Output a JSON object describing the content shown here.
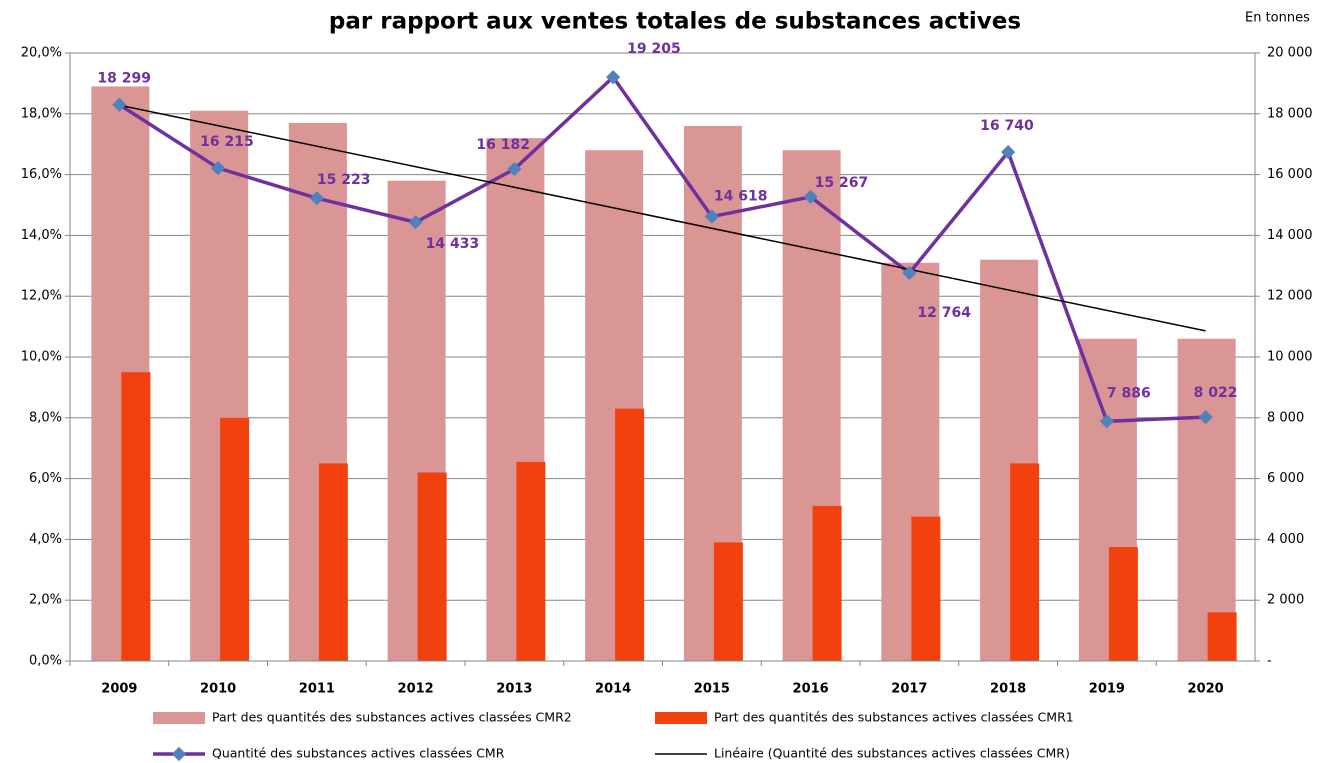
{
  "chart_data": {
    "type": "bar",
    "title": "par rapport aux ventes totales de substances actives",
    "unit_note": "En tonnes",
    "categories": [
      "2009",
      "2010",
      "2011",
      "2012",
      "2013",
      "2014",
      "2015",
      "2016",
      "2017",
      "2018",
      "2019",
      "2020"
    ],
    "series": [
      {
        "name": "Part des quantités des substances actives classées CMR2",
        "color": "#d99694",
        "values": [
          18.9,
          18.1,
          17.7,
          15.8,
          17.2,
          16.8,
          17.6,
          16.8,
          13.1,
          13.2,
          10.6,
          10.6
        ]
      },
      {
        "name": "Part des quantités des substances actives classées CMR1",
        "color": "#f0410f",
        "values": [
          9.5,
          8.0,
          6.5,
          6.2,
          6.55,
          8.3,
          3.9,
          5.1,
          4.75,
          6.5,
          3.75,
          1.6
        ]
      },
      {
        "name": "Quantité des substances actives classées CMR",
        "color": "#7030a0",
        "marker_color": "#4f81bd",
        "axis": "y2",
        "values": [
          18299,
          16215,
          15223,
          14433,
          16182,
          19205,
          14618,
          15267,
          12764,
          16740,
          7886,
          8022
        ],
        "value_labels": [
          "18 299",
          "16 215",
          "15 223",
          "14 433",
          "16 182",
          "19 205",
          "14 618",
          "15 267",
          "12 764",
          "16 740",
          "7 886",
          "8 022"
        ]
      }
    ],
    "trendline": {
      "name": "Linéaire (Quantité des substances actives classées CMR)",
      "color": "#000000"
    },
    "ylim": [
      0,
      20
    ],
    "yticks": [
      {
        "value": 0,
        "label": "0,0%"
      },
      {
        "value": 2,
        "label": "2,0%"
      },
      {
        "value": 4,
        "label": "4,0%"
      },
      {
        "value": 6,
        "label": "6,0%"
      },
      {
        "value": 8,
        "label": "8,0%"
      },
      {
        "value": 10,
        "label": "10,0%"
      },
      {
        "value": 12,
        "label": "12,0%"
      },
      {
        "value": 14,
        "label": "14,0%"
      },
      {
        "value": 16,
        "label": "16,0%"
      },
      {
        "value": 18,
        "label": "18,0%"
      },
      {
        "value": 20,
        "label": "20,0%"
      }
    ],
    "y2lim": [
      0,
      20000
    ],
    "y2ticks": [
      {
        "value": 0,
        "label": "-"
      },
      {
        "value": 2000,
        "label": "2 000"
      },
      {
        "value": 4000,
        "label": "4 000"
      },
      {
        "value": 6000,
        "label": "6 000"
      },
      {
        "value": 8000,
        "label": "8 000"
      },
      {
        "value": 10000,
        "label": "10 000"
      },
      {
        "value": 12000,
        "label": "12 000"
      },
      {
        "value": 14000,
        "label": "14 000"
      },
      {
        "value": 16000,
        "label": "16 000"
      },
      {
        "value": 18000,
        "label": "18 000"
      },
      {
        "value": 20000,
        "label": "20 000"
      }
    ],
    "grid": true
  }
}
